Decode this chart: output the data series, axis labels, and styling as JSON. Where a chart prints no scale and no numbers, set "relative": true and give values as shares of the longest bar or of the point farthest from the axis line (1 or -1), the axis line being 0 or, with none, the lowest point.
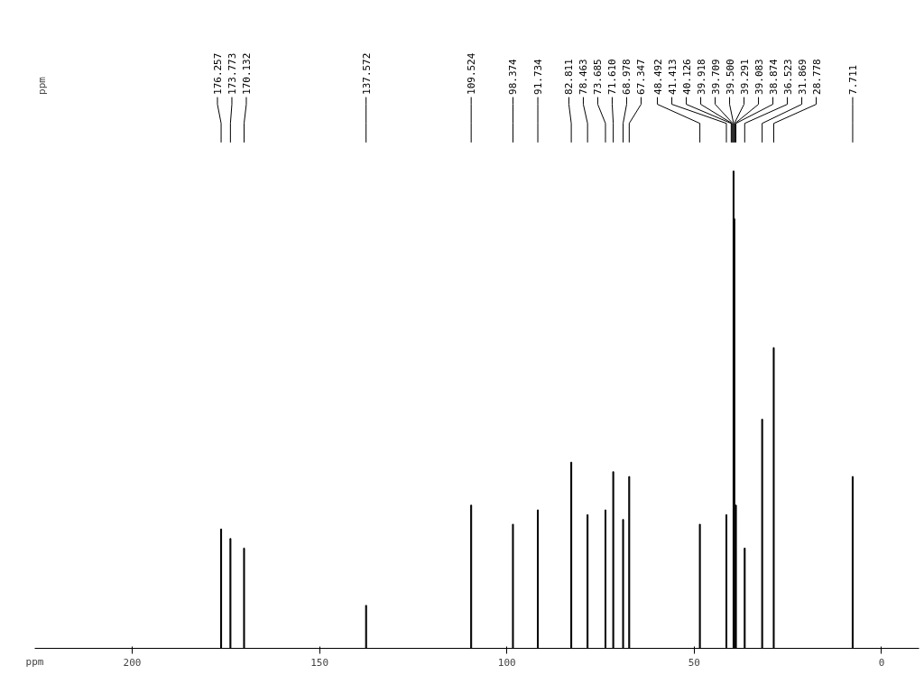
{
  "chart_data": {
    "type": "bar",
    "relative": true,
    "xlabel": "ppm",
    "xlim": [
      226,
      -10
    ],
    "xticks": [
      200,
      150,
      100,
      50,
      0
    ],
    "grid": false,
    "x": [
      176.257,
      173.773,
      170.132,
      137.572,
      109.524,
      98.374,
      91.734,
      82.811,
      78.463,
      73.685,
      71.61,
      68.978,
      67.347,
      48.492,
      41.413,
      40.126,
      39.918,
      39.709,
      39.5,
      39.291,
      39.083,
      38.874,
      36.523,
      31.869,
      28.778,
      7.711
    ],
    "values": [
      0.25,
      0.23,
      0.21,
      0.09,
      0.3,
      0.26,
      0.29,
      0.39,
      0.28,
      0.29,
      0.37,
      0.27,
      0.36,
      0.26,
      0.28,
      null,
      null,
      null,
      1,
      0.9,
      null,
      0.3,
      0.21,
      0.48,
      0.63,
      0.36
    ],
    "color": "#000000",
    "annotations": [
      "ppm",
      {
        "text": "176.257",
        "x": 176.257
      },
      {
        "text": "173.773",
        "x": 173.773
      },
      {
        "text": "170.132",
        "x": 170.132
      },
      {
        "text": "137.572",
        "x": 137.572
      },
      {
        "text": "109.524",
        "x": 109.524
      },
      {
        "text": "98.374",
        "x": 98.374
      },
      {
        "text": "91.734",
        "x": 91.734
      },
      {
        "text": "82.811",
        "x": 82.811
      },
      {
        "text": "78.463",
        "x": 78.463
      },
      {
        "text": "73.685",
        "x": 73.685
      },
      {
        "text": "71.610",
        "x": 71.61
      },
      {
        "text": "68.978",
        "x": 68.978
      },
      {
        "text": "67.347",
        "x": 67.347
      },
      {
        "text": "48.492",
        "x": 48.492
      },
      {
        "text": "41.413",
        "x": 41.413
      },
      {
        "text": "40.126",
        "x": 40.126
      },
      {
        "text": "39.918",
        "x": 39.918
      },
      {
        "text": "39.709",
        "x": 39.709
      },
      {
        "text": "39.500",
        "x": 39.5
      },
      {
        "text": "39.291",
        "x": 39.291
      },
      {
        "text": "39.083",
        "x": 39.083
      },
      {
        "text": "38.874",
        "x": 38.874
      },
      {
        "text": "36.523",
        "x": 36.523
      },
      {
        "text": "31.869",
        "x": 31.869
      },
      {
        "text": "28.778",
        "x": 28.778
      },
      {
        "text": "7.711",
        "x": 7.711
      }
    ]
  }
}
